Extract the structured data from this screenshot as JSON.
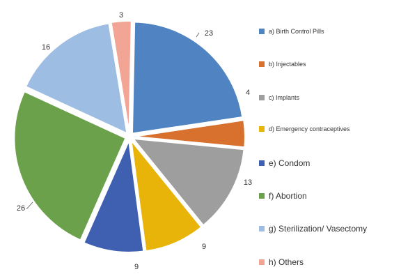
{
  "chart_data": {
    "type": "pie",
    "title": "",
    "colors": [
      "#4f83c2",
      "#d8702e",
      "#9e9e9e",
      "#e8b40a",
      "#3f5fb0",
      "#6aa14a",
      "#9dbde3",
      "#f2a595"
    ],
    "slices": [
      {
        "label": "a)   Birth Control Pills",
        "value": 23,
        "data_label": "23"
      },
      {
        "label": "b)   Injectables",
        "value": 4,
        "data_label": "4"
      },
      {
        "label": "c)   Implants",
        "value": 13,
        "data_label": "13"
      },
      {
        "label": "d)   Emergency contraceptives",
        "value": 9,
        "data_label": "9"
      },
      {
        "label": "e)    Condom",
        "value": 9,
        "data_label": "9"
      },
      {
        "label": "f)     Abortion",
        "value": 26,
        "data_label": "26"
      },
      {
        "label": "g)    Sterilization/ Vasectomy",
        "value": 16,
        "data_label": "16"
      },
      {
        "label": "h)    Others",
        "value": 3,
        "data_label": "3"
      }
    ],
    "legend_position": "right"
  }
}
